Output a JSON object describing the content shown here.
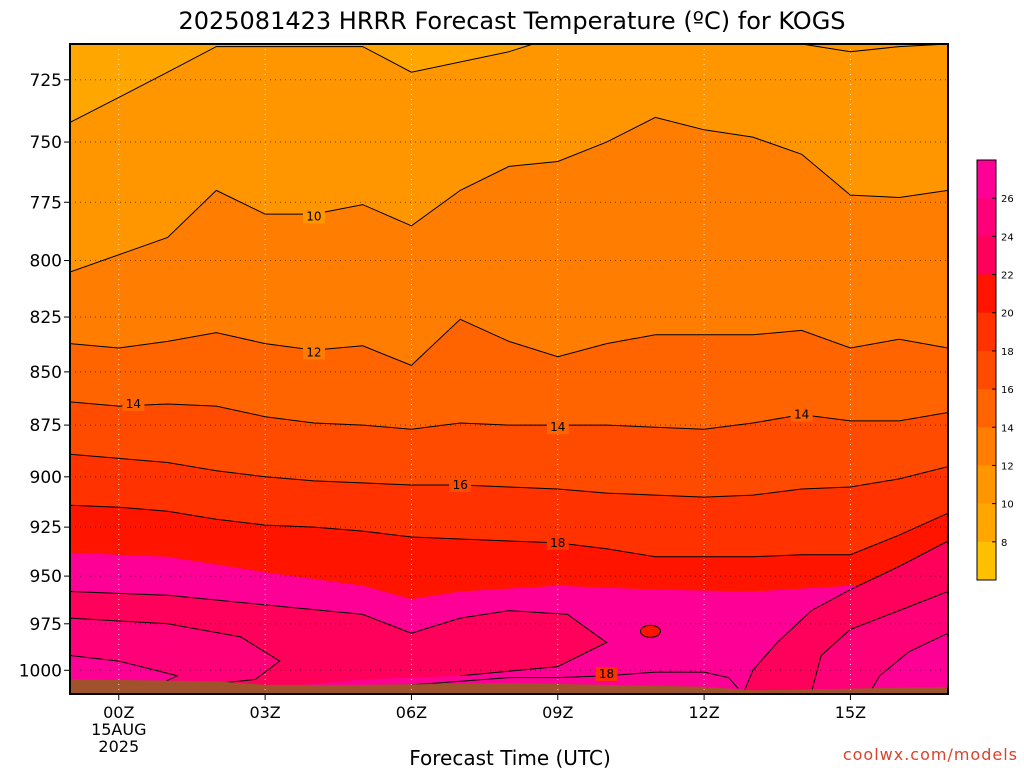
{
  "chart_data": {
    "type": "heatmap",
    "title": "2025081423 HRRR Forecast Temperature (ºC) for KOGS",
    "xlabel": "Forecast Time (UTC)",
    "ylabel": "",
    "credit": "coolwx.com/models",
    "x_ticks": [
      {
        "hour": 0,
        "lines": [
          "00Z",
          "15AUG",
          "2025"
        ]
      },
      {
        "hour": 3,
        "lines": [
          "03Z"
        ]
      },
      {
        "hour": 6,
        "lines": [
          "06Z"
        ]
      },
      {
        "hour": 9,
        "lines": [
          "09Z"
        ]
      },
      {
        "hour": 12,
        "lines": [
          "12Z"
        ]
      },
      {
        "hour": 15,
        "lines": [
          "15Z"
        ]
      }
    ],
    "xlim": [
      -1,
      17
    ],
    "y_ticks": [
      725,
      750,
      775,
      800,
      825,
      850,
      875,
      900,
      925,
      950,
      975,
      1000
    ],
    "ylim": [
      711,
      1013
    ],
    "y_scale": "log-pressure (inverted)",
    "grid": true,
    "colorbar": {
      "position": "right",
      "ticks": [
        8,
        10,
        12,
        14,
        16,
        18,
        20,
        22,
        24,
        26
      ],
      "colors": [
        "#ffc000",
        "#ffa600",
        "#ff9600",
        "#ff7d00",
        "#ff6400",
        "#ff4b00",
        "#ff3200",
        "#ff1400",
        "#ff005a",
        "#ff0078",
        "#ff0096"
      ]
    },
    "x_hours": [
      -1,
      0,
      1,
      2,
      3,
      4,
      5,
      6,
      7,
      8,
      9,
      10,
      11,
      12,
      13,
      14,
      15,
      16,
      17
    ],
    "contours": [
      {
        "level": 10,
        "points": [
          [
            -1,
            805
          ],
          [
            1,
            790
          ],
          [
            2,
            770
          ],
          [
            3,
            780
          ],
          [
            4,
            780
          ],
          [
            5,
            776
          ],
          [
            6,
            785
          ],
          [
            7,
            770
          ],
          [
            8,
            760
          ],
          [
            9,
            758
          ],
          [
            10,
            750
          ],
          [
            11,
            740
          ],
          [
            12,
            745
          ],
          [
            13,
            748
          ],
          [
            14,
            755
          ],
          [
            15,
            772
          ],
          [
            16,
            773
          ],
          [
            17,
            770
          ]
        ]
      },
      {
        "level": 12,
        "points": [
          [
            -1,
            837
          ],
          [
            0,
            839
          ],
          [
            1,
            836
          ],
          [
            2,
            832
          ],
          [
            3,
            837
          ],
          [
            4,
            840
          ],
          [
            5,
            838
          ],
          [
            6,
            847
          ],
          [
            7,
            826
          ],
          [
            8,
            836
          ],
          [
            9,
            843
          ],
          [
            10,
            837
          ],
          [
            11,
            833
          ],
          [
            12,
            833
          ],
          [
            13,
            833
          ],
          [
            14,
            831
          ],
          [
            15,
            839
          ],
          [
            16,
            835
          ],
          [
            17,
            839
          ]
        ]
      },
      {
        "level": 14,
        "points": [
          [
            -1,
            864
          ],
          [
            0,
            866
          ],
          [
            1,
            865
          ],
          [
            2,
            866
          ],
          [
            3,
            871
          ],
          [
            4,
            874
          ],
          [
            5,
            875
          ],
          [
            6,
            877
          ],
          [
            7,
            874
          ],
          [
            8,
            875
          ],
          [
            9,
            875
          ],
          [
            10,
            875
          ],
          [
            11,
            876
          ],
          [
            12,
            877
          ],
          [
            13,
            874
          ],
          [
            14,
            870
          ],
          [
            15,
            873
          ],
          [
            16,
            873
          ],
          [
            17,
            869
          ]
        ]
      },
      {
        "level": 16,
        "points": [
          [
            -1,
            889
          ],
          [
            0,
            891
          ],
          [
            1,
            893
          ],
          [
            2,
            897
          ],
          [
            3,
            900
          ],
          [
            4,
            902
          ],
          [
            5,
            903
          ],
          [
            6,
            904
          ],
          [
            7,
            904
          ],
          [
            8,
            905
          ],
          [
            9,
            906
          ],
          [
            10,
            908
          ],
          [
            11,
            909
          ],
          [
            12,
            910
          ],
          [
            13,
            909
          ],
          [
            14,
            906
          ],
          [
            15,
            905
          ],
          [
            16,
            901
          ],
          [
            17,
            895
          ]
        ]
      },
      {
        "level": 18,
        "points": [
          [
            -1,
            914
          ],
          [
            0,
            915
          ],
          [
            1,
            917
          ],
          [
            2,
            921
          ],
          [
            3,
            924
          ],
          [
            4,
            925
          ],
          [
            5,
            927
          ],
          [
            6,
            930
          ],
          [
            7,
            931
          ],
          [
            8,
            932
          ],
          [
            9,
            933
          ],
          [
            10,
            936
          ],
          [
            11,
            940
          ],
          [
            12,
            940
          ],
          [
            13,
            940
          ],
          [
            14,
            939
          ],
          [
            15,
            939
          ],
          [
            16,
            929
          ],
          [
            17,
            918
          ]
        ]
      }
    ],
    "contour_labels": [
      {
        "level": 10,
        "text": "10",
        "x": 4,
        "y": 781
      },
      {
        "level": 12,
        "text": "12",
        "x": 4,
        "y": 841
      },
      {
        "level": 14,
        "text": "14",
        "x": 0.3,
        "y": 865
      },
      {
        "level": 14,
        "text": "14",
        "x": 9,
        "y": 876
      },
      {
        "level": 14,
        "text": "14",
        "x": 14,
        "y": 870
      },
      {
        "level": 16,
        "text": "16",
        "x": 7,
        "y": 904
      },
      {
        "level": 18,
        "text": "18",
        "x": 9,
        "y": 933
      },
      {
        "level": 18,
        "text": "18",
        "x": 10,
        "y": 1002
      }
    ]
  }
}
